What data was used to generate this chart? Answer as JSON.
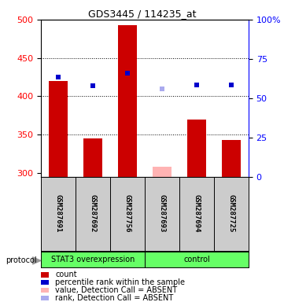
{
  "title": "GDS3445 / 114235_at",
  "samples": [
    "GSM287691",
    "GSM287692",
    "GSM287756",
    "GSM287693",
    "GSM287694",
    "GSM287725"
  ],
  "bar_values": [
    420,
    345,
    493,
    null,
    370,
    343
  ],
  "bar_absent_values": [
    null,
    null,
    null,
    308,
    null,
    null
  ],
  "blue_squares": [
    425,
    414,
    430,
    null,
    415,
    415
  ],
  "blue_absent_squares": [
    null,
    null,
    null,
    410,
    null,
    null
  ],
  "groups": [
    {
      "label": "STAT3 overexpression",
      "start": 0,
      "end": 3
    },
    {
      "label": "control",
      "start": 3,
      "end": 6
    }
  ],
  "ylim_left": [
    295,
    500
  ],
  "ylim_right": [
    0,
    100
  ],
  "yticks_left": [
    300,
    350,
    400,
    450,
    500
  ],
  "yticks_right": [
    0,
    25,
    50,
    75,
    100
  ],
  "bar_color": "#cc0000",
  "bar_absent_color": "#ffb3b3",
  "blue_color": "#0000cc",
  "blue_absent_color": "#aaaaee",
  "group_color": "#66ff66",
  "sample_box_color": "#cccccc",
  "bar_width": 0.55,
  "legend_items": [
    {
      "color": "#cc0000",
      "label": "count"
    },
    {
      "color": "#0000cc",
      "label": "percentile rank within the sample"
    },
    {
      "color": "#ffb3b3",
      "label": "value, Detection Call = ABSENT"
    },
    {
      "color": "#aaaaee",
      "label": "rank, Detection Call = ABSENT"
    }
  ]
}
